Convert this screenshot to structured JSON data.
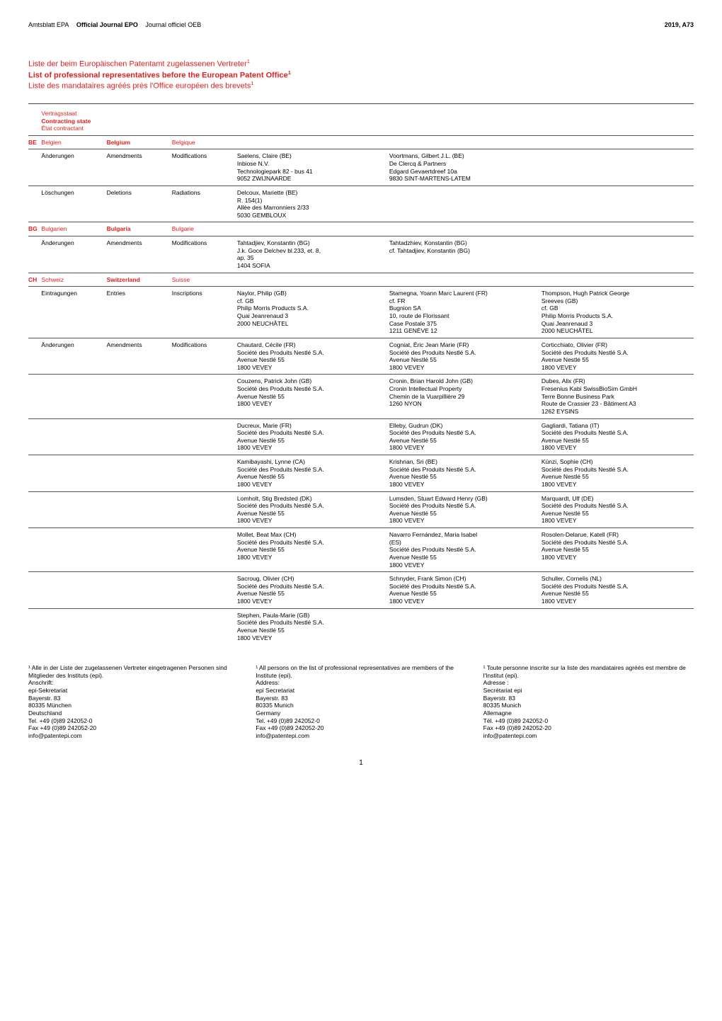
{
  "header": {
    "de": "Amtsblatt EPA",
    "en": "Official Journal EPO",
    "fr": "Journal officiel OEB",
    "right": "2019, A73"
  },
  "title": {
    "de": "Liste der beim Europäischen Patentamt zugelassenen Vertreter",
    "en": "List of professional representatives before the European Patent Office",
    "fr": "Liste des mandataires agréés près l'Office européen des brevets",
    "sup": "1"
  },
  "headrow": {
    "de": "Vertragsstaat",
    "en": "Contracting state",
    "fr": "État contractant"
  },
  "countries": [
    {
      "code": "BE",
      "de": "Belgien",
      "en": "Belgium",
      "fr": "Belgique",
      "sections": [
        {
          "de": "Änderungen",
          "en": "Amendments",
          "fr": "Modifications",
          "rows": [
            [
              "Saelens, Claire (BE)\nInbiose N.V.\nTechnologiepark 82 - bus 41\n9052 ZWIJNAARDE",
              "Voortmans, Gilbert J.L. (BE)\nDe Clercq & Partners\nEdgard Gevaertdreef 10a\n9830 SINT-MARTENS-LATEM",
              ""
            ]
          ]
        },
        {
          "de": "Löschungen",
          "en": "Deletions",
          "fr": "Radiations",
          "rows": [
            [
              "Delcoux, Mariette (BE)\nR. 154(1)\nAllée des Marronniers 2/33\n5030 GEMBLOUX",
              "",
              ""
            ]
          ]
        }
      ]
    },
    {
      "code": "BG",
      "de": "Bulgarien",
      "en": "Bulgaria",
      "fr": "Bulgarie",
      "sections": [
        {
          "de": "Änderungen",
          "en": "Amendments",
          "fr": "Modifications",
          "rows": [
            [
              "Tahtadjiev, Konstantin (BG)\nJ.k. Goce Delchev bl.233, et. 8,\nap. 35\n1404 SOFIA",
              "Tahtadzhiev, Konstantin (BG)\ncf. Tahtadjiev, Konstantin (BG)",
              ""
            ]
          ]
        }
      ]
    },
    {
      "code": "CH",
      "de": "Schweiz",
      "en": "Switzerland",
      "fr": "Suisse",
      "sections": [
        {
          "de": "Eintragungen",
          "en": "Entries",
          "fr": "Inscriptions",
          "rows": [
            [
              "Naylor, Philip (GB)\ncf. GB\nPhilip Morris Products S.A.\nQuai Jeanrenaud 3\n2000 NEUCHÂTEL",
              "Stamegna, Yoann Marc Laurent (FR)\ncf. FR\nBugnion SA\n10, route de Florissant\nCase Postale 375\n1211 GENÈVE 12",
              "Thompson, Hugh Patrick George\nSreeves (GB)\ncf. GB\nPhilip Morris Products S.A.\nQuai Jeanrenaud 3\n2000 NEUCHÂTEL"
            ]
          ]
        },
        {
          "de": "Änderungen",
          "en": "Amendments",
          "fr": "Modifications",
          "rows": [
            [
              "Chautard, Cécile (FR)\nSociété des Produits Nestlé S.A.\nAvenue Nestlé 55\n1800 VEVEY",
              "Cogniat, Éric Jean Marie (FR)\nSociété des Produits Nestlé S.A.\nAvenue Nestlé 55\n1800 VEVEY",
              "Corticchiato, Olivier (FR)\nSociété des Produits Nestlé S.A.\nAvenue Nestlé 55\n1800 VEVEY"
            ],
            [
              "Couzens, Patrick John (GB)\nSociété des Produits Nestlé S.A.\nAvenue Nestlé 55\n1800 VEVEY",
              "Cronin, Brian Harold John (GB)\nCronin Intellectual Property\nChemin de la Vuarpillière 29\n1260 NYON",
              "Dubes, Alix (FR)\nFresenius Kabi SwissBioSim GmbH\nTerre Bonne Business Park\nRoute de Crassier 23 - Bâtiment A3\n1262 EYSINS"
            ],
            [
              "Ducreux, Marie (FR)\nSociété des Produits Nestlé S.A.\nAvenue Nestlé 55\n1800 VEVEY",
              "Elleby, Gudrun (DK)\nSociété des Produits Nestlé S.A.\nAvenue Nestlé 55\n1800 VEVEY",
              "Gagliardi, Tatiana (IT)\nSociété des Produits Nestlé S.A.\nAvenue Nestlé 55\n1800 VEVEY"
            ],
            [
              "Kamibayashi, Lynne (CA)\nSociété des Produits Nestlé S.A.\nAvenue Nestlé 55\n1800 VEVEY",
              "Krishnan, Sri (BE)\nSociété des Produits Nestlé S.A.\nAvenue Nestlé 55\n1800 VEVEY",
              "Künzi, Sophie (CH)\nSociété des Produits Nestlé S.A.\nAvenue Nestlé 55\n1800 VEVEY"
            ],
            [
              "Lomholt, Stig Bredsted (DK)\nSociété des Produits Nestlé S.A.\nAvenue Nestlé 55\n1800 VEVEY",
              "Lumsden, Stuart Edward Henry (GB)\nSociété des Produits Nestlé S.A.\nAvenue Nestlé 55\n1800 VEVEY",
              "Marquardt, Ulf (DE)\nSociété des Produits Nestlé S.A.\nAvenue Nestlé 55\n1800 VEVEY"
            ],
            [
              "Mollet, Beat Max (CH)\nSociété des Produits Nestlé S.A.\nAvenue Nestlé 55\n1800 VEVEY",
              "Navarro Fernández, Maria Isabel\n(ES)\nSociété des Produits Nestlé S.A.\nAvenue Nestlé 55\n1800 VEVEY",
              "Rosolen-Delarue, Katell (FR)\nSociété des Produits Nestlé S.A.\nAvenue Nestlé 55\n1800 VEVEY"
            ],
            [
              "Sacroug, Olivier (CH)\nSociété des Produits Nestlé S.A.\nAvenue Nestlé 55\n1800 VEVEY",
              "Schnyder, Frank Simon (CH)\nSociété des Produits Nestlé S.A.\nAvenue Nestlé 55\n1800 VEVEY",
              "Schuller, Cornelis (NL)\nSociété des Produits Nestlé S.A.\nAvenue Nestlé 55\n1800 VEVEY"
            ],
            [
              "Stephen, Paula-Marie (GB)\nSociété des Produits Nestlé S.A.\nAvenue Nestlé 55\n1800 VEVEY",
              "",
              ""
            ]
          ]
        }
      ]
    }
  ],
  "footnotes": {
    "de": "¹ Alle in der Liste der zugelassenen Vertreter eingetragenen Personen sind Mitglieder des Instituts (epi).\nAnschrift:\nepi-Sekretariat\nBayerstr. 83\n80335 München\nDeutschland\nTel. +49 (0)89 242052-0\nFax +49 (0)89 242052-20\ninfo@patentepi.com",
    "en": "¹ All persons on the list of professional representatives are members of the Institute (epi).\nAddress:\nepi Secretariat\nBayerstr. 83\n80335 Munich\nGermany\nTel. +49 (0)89 242052-0\nFax +49 (0)89 242052-20\ninfo@patentepi.com",
    "fr": "¹ Toute personne inscrite sur la liste des mandataires agréés est membre de l'Institut (epi).\nAdresse :\nSecrétariat epi\nBayerstr. 83\n80335 Munich\nAllemagne\nTél. +49 (0)89 242052-0\nFax +49 (0)89 242052-20\ninfo@patentepi.com"
  },
  "page_number": "1"
}
